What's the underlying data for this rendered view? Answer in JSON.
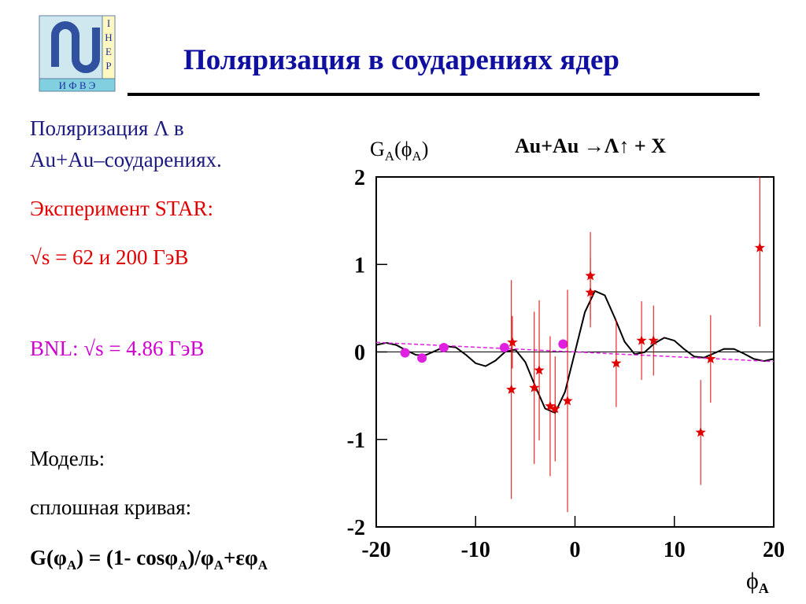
{
  "header": {
    "title": "Поляризация в соударениях ядер",
    "logo": {
      "side": [
        "І",
        "Н",
        "Е",
        "Р"
      ],
      "bottom": "И Ф В Э"
    }
  },
  "text": {
    "line1": "Поляризация  Λ в",
    "line2": "Au+Au–соударениях.",
    "line3": "Эксперимент STAR:",
    "line4": "√s = 62  и 200 ГэВ",
    "line5": "BNL:  √s = 4.86 ГэВ",
    "line6": "Модель:",
    "line7": "сплошная кривая:",
    "formula": [
      "G(φ",
      "A",
      ") = (1- cosφ",
      "A",
      ")/φ",
      "A",
      "+εφ",
      "A"
    ]
  },
  "chart_data": {
    "type": "scatter",
    "title": "Au+Au →Λ↑ + X",
    "y_label": [
      "G",
      "A",
      "(ϕ",
      "A",
      ")"
    ],
    "x_label": [
      "ϕ",
      "A"
    ],
    "xlim": [
      -20,
      20
    ],
    "ylim": [
      -2,
      2
    ],
    "xticks": [
      -20,
      -10,
      0,
      10,
      20
    ],
    "yticks": [
      -2,
      -1,
      0,
      1,
      2
    ],
    "zero_line": true,
    "series": [
      {
        "marker": "line",
        "color": "#000000",
        "x": [
          -20,
          -19,
          -18,
          -17,
          -16,
          -15,
          -14,
          -13,
          -12,
          -11,
          -10,
          -9,
          -8,
          -7,
          -6,
          -5,
          -4,
          -3,
          -2,
          -1,
          0,
          1,
          2,
          3,
          4,
          5,
          6,
          7,
          8,
          9,
          10,
          11,
          12,
          13,
          14,
          15,
          16,
          17,
          18,
          19,
          20
        ],
        "values": [
          0.08,
          0.104,
          0.08,
          0.019,
          -0.034,
          -0.035,
          0.015,
          0.065,
          0.053,
          -0.031,
          -0.129,
          -0.163,
          -0.099,
          0.004,
          0.026,
          -0.116,
          -0.391,
          -0.647,
          -0.697,
          -0.455,
          0,
          0.455,
          0.697,
          0.647,
          0.391,
          0.116,
          -0.026,
          -0.004,
          0.099,
          0.163,
          0.129,
          0.031,
          -0.053,
          -0.065,
          -0.015,
          0.035,
          0.034,
          -0.019,
          -0.08,
          -0.104,
          -0.08
        ]
      },
      {
        "marker": "dashed",
        "color": "#e020e0",
        "x": [
          -20,
          20
        ],
        "values": [
          0.11,
          -0.11
        ]
      },
      {
        "marker": "circle",
        "color": "#e020e0",
        "x": [
          -17.1,
          -15.4,
          -13.2,
          -7.1,
          -1.2
        ],
        "values": [
          -0.01,
          -0.07,
          0.05,
          0.05,
          0.09
        ]
      },
      {
        "marker": "star",
        "color": "#e00000",
        "x": [
          -6.4,
          -6.3,
          -4.1,
          -3.6,
          -2.5,
          -2.0,
          -0.75,
          1.55,
          1.55,
          4.15,
          6.7,
          7.9,
          12.65,
          13.65,
          18.6
        ],
        "values": [
          -0.43,
          0.11,
          -0.41,
          -0.21,
          -0.62,
          -0.65,
          -0.56,
          0.87,
          0.68,
          -0.13,
          0.13,
          0.13,
          -0.92,
          -0.08,
          1.19
        ],
        "errors": [
          1.25,
          0.3,
          0.87,
          0.8,
          0.8,
          0.6,
          1.27,
          0.5,
          0.4,
          0.5,
          0.45,
          0.4,
          0.6,
          0.5,
          0.9
        ]
      }
    ]
  }
}
